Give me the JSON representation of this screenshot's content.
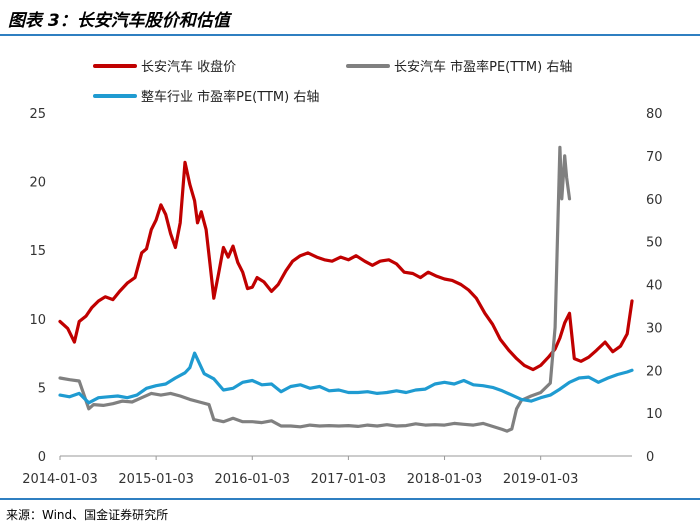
{
  "header": {
    "title": "图表 3：长安汽车股价和估值"
  },
  "footer": {
    "source": "来源：Wind、国金证券研究所"
  },
  "chart_data": {
    "type": "line",
    "title": "长安汽车股价和估值",
    "x_ticks": [
      "2014-01-03",
      "2015-01-03",
      "2016-01-03",
      "2017-01-03",
      "2018-01-03",
      "2019-01-03"
    ],
    "x_range": [
      2014.0,
      2019.95
    ],
    "y_left": {
      "range": [
        0,
        25
      ],
      "ticks": [
        "0",
        "5",
        "10",
        "15",
        "20",
        "25"
      ]
    },
    "y_right": {
      "range": [
        0,
        80
      ],
      "ticks": [
        "0",
        "10",
        "20",
        "30",
        "40",
        "50",
        "60",
        "70",
        "80"
      ]
    },
    "legend": [
      {
        "name": "长安汽车 收盘价",
        "color": "#c00000"
      },
      {
        "name": "长安汽车 市盈率PE(TTM) 右轴",
        "color": "#808080"
      },
      {
        "name": "整车行业 市盈率PE(TTM) 右轴",
        "color": "#1f9bd1"
      }
    ],
    "series": [
      {
        "name": "长安汽车 收盘价",
        "axis": "left",
        "color": "#c00000",
        "x": [
          2014.0,
          2014.08,
          2014.15,
          2014.2,
          2014.27,
          2014.33,
          2014.4,
          2014.47,
          2014.55,
          2014.62,
          2014.7,
          2014.78,
          2014.85,
          2014.9,
          2014.95,
          2015.0,
          2015.05,
          2015.1,
          2015.15,
          2015.2,
          2015.25,
          2015.3,
          2015.35,
          2015.4,
          2015.43,
          2015.47,
          2015.52,
          2015.56,
          2015.6,
          2015.65,
          2015.7,
          2015.75,
          2015.8,
          2015.85,
          2015.9,
          2015.95,
          2016.0,
          2016.05,
          2016.12,
          2016.2,
          2016.27,
          2016.35,
          2016.42,
          2016.5,
          2016.58,
          2016.67,
          2016.75,
          2016.83,
          2016.92,
          2017.0,
          2017.08,
          2017.17,
          2017.25,
          2017.33,
          2017.42,
          2017.5,
          2017.58,
          2017.67,
          2017.75,
          2017.83,
          2017.92,
          2018.0,
          2018.08,
          2018.17,
          2018.25,
          2018.33,
          2018.42,
          2018.5,
          2018.58,
          2018.67,
          2018.75,
          2018.83,
          2018.92,
          2019.0,
          2019.08,
          2019.15,
          2019.2,
          2019.25,
          2019.3,
          2019.35,
          2019.42,
          2019.5,
          2019.58,
          2019.67,
          2019.75,
          2019.83,
          2019.9,
          2019.95
        ],
        "y": [
          9.8,
          9.3,
          8.3,
          9.8,
          10.2,
          10.8,
          11.3,
          11.6,
          11.4,
          12.0,
          12.6,
          13.0,
          14.8,
          15.1,
          16.5,
          17.2,
          18.3,
          17.6,
          16.2,
          15.2,
          17.0,
          21.4,
          19.8,
          18.6,
          17.0,
          17.8,
          16.5,
          14.0,
          11.5,
          13.3,
          15.2,
          14.5,
          15.3,
          14.1,
          13.4,
          12.2,
          12.3,
          13.0,
          12.7,
          12.0,
          12.5,
          13.5,
          14.2,
          14.6,
          14.8,
          14.5,
          14.3,
          14.2,
          14.5,
          14.3,
          14.6,
          14.2,
          13.9,
          14.2,
          14.3,
          14.0,
          13.4,
          13.3,
          13.0,
          13.4,
          13.1,
          12.9,
          12.8,
          12.5,
          12.1,
          11.5,
          10.4,
          9.6,
          8.5,
          7.7,
          7.1,
          6.6,
          6.3,
          6.6,
          7.2,
          7.8,
          8.6,
          9.7,
          10.4,
          7.1,
          6.9,
          7.2,
          7.7,
          8.3,
          7.6,
          8.0,
          8.9,
          11.3
        ]
      },
      {
        "name": "长安汽车 市盈率PE(TTM) 右轴",
        "axis": "right",
        "color": "#808080",
        "x": [
          2014.0,
          2014.1,
          2014.2,
          2014.3,
          2014.35,
          2014.45,
          2014.55,
          2014.65,
          2014.75,
          2014.85,
          2014.95,
          2015.05,
          2015.15,
          2015.25,
          2015.35,
          2015.45,
          2015.55,
          2015.6,
          2015.7,
          2015.8,
          2015.9,
          2016.0,
          2016.1,
          2016.2,
          2016.3,
          2016.4,
          2016.5,
          2016.6,
          2016.7,
          2016.8,
          2016.9,
          2017.0,
          2017.1,
          2017.2,
          2017.3,
          2017.4,
          2017.5,
          2017.6,
          2017.7,
          2017.8,
          2017.9,
          2018.0,
          2018.1,
          2018.2,
          2018.3,
          2018.4,
          2018.5,
          2018.6,
          2018.65,
          2018.7,
          2018.75,
          2018.8,
          2018.9,
          2019.0,
          2019.1,
          2019.15,
          2019.2,
          2019.22,
          2019.25,
          2019.27,
          2019.3
        ],
        "y": [
          18.2,
          17.8,
          17.5,
          11.0,
          12.0,
          11.8,
          12.2,
          12.8,
          12.6,
          13.6,
          14.6,
          14.2,
          14.6,
          14.0,
          13.2,
          12.6,
          12.0,
          8.5,
          8.0,
          8.8,
          8.0,
          8.0,
          7.8,
          8.2,
          7.0,
          7.0,
          6.8,
          7.2,
          7.0,
          7.1,
          7.0,
          7.1,
          6.9,
          7.2,
          7.0,
          7.3,
          7.0,
          7.1,
          7.5,
          7.2,
          7.3,
          7.2,
          7.6,
          7.4,
          7.2,
          7.6,
          6.9,
          6.2,
          5.8,
          6.3,
          11.0,
          13.0,
          14.0,
          14.8,
          17.0,
          30.0,
          72.0,
          60.0,
          70.0,
          65.0,
          60.0
        ]
      },
      {
        "name": "整车行业 市盈率PE(TTM) 右轴",
        "axis": "right",
        "color": "#1f9bd1",
        "x": [
          2014.0,
          2014.1,
          2014.2,
          2014.3,
          2014.4,
          2014.5,
          2014.6,
          2014.7,
          2014.8,
          2014.9,
          2015.0,
          2015.1,
          2015.2,
          2015.3,
          2015.35,
          2015.4,
          2015.5,
          2015.6,
          2015.7,
          2015.8,
          2015.9,
          2016.0,
          2016.1,
          2016.2,
          2016.3,
          2016.4,
          2016.5,
          2016.6,
          2016.7,
          2016.8,
          2016.9,
          2017.0,
          2017.1,
          2017.2,
          2017.3,
          2017.4,
          2017.5,
          2017.6,
          2017.7,
          2017.8,
          2017.9,
          2018.0,
          2018.1,
          2018.2,
          2018.3,
          2018.4,
          2018.5,
          2018.6,
          2018.7,
          2018.8,
          2018.9,
          2019.0,
          2019.1,
          2019.2,
          2019.3,
          2019.4,
          2019.5,
          2019.6,
          2019.7,
          2019.8,
          2019.9,
          2019.95
        ],
        "y": [
          14.2,
          13.8,
          14.6,
          12.4,
          13.6,
          13.8,
          14.0,
          13.6,
          14.2,
          15.8,
          16.4,
          16.8,
          18.2,
          19.4,
          20.6,
          24.0,
          19.2,
          18.0,
          15.4,
          15.8,
          17.2,
          17.6,
          16.6,
          16.8,
          15.0,
          16.2,
          16.6,
          15.8,
          16.2,
          15.2,
          15.4,
          14.8,
          14.8,
          15.0,
          14.6,
          14.8,
          15.2,
          14.8,
          15.4,
          15.6,
          16.8,
          17.2,
          16.8,
          17.6,
          16.6,
          16.4,
          16.0,
          15.2,
          14.2,
          13.2,
          12.8,
          13.6,
          14.2,
          15.6,
          17.2,
          18.2,
          18.4,
          17.2,
          18.2,
          19.0,
          19.6,
          20.0
        ]
      }
    ]
  }
}
